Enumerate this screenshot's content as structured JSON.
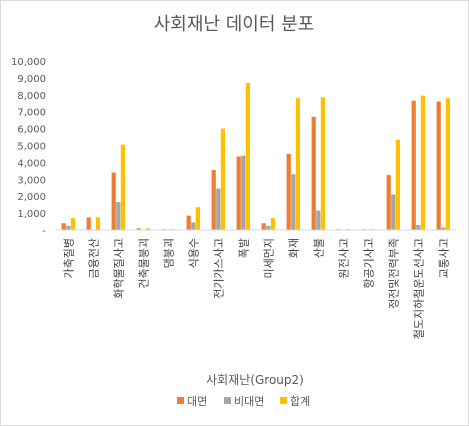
{
  "chart_data": {
    "type": "bar",
    "title": "사회재난 데이터 분포",
    "xlabel": "사회재난(Group2)",
    "ylabel": "",
    "ylim": [
      0,
      10000
    ],
    "yticks": [
      "-",
      "1,000",
      "2,000",
      "3,000",
      "4,000",
      "5,000",
      "6,000",
      "7,000",
      "8,000",
      "9,000",
      "10,000"
    ],
    "grid": false,
    "legend_position": "bottom",
    "categories": [
      "가축질병",
      "금융전산",
      "화학물질사고",
      "건축물붕괴",
      "댐붕괴",
      "식용수",
      "전기가스사고",
      "폭발",
      "미세먼지",
      "화재",
      "산불",
      "원전사고",
      "항공기사고",
      "정전및전력부족",
      "철도지하철운도선사고",
      "교통사고"
    ],
    "series": [
      {
        "name": "대면",
        "color": "#ed7d31",
        "values": [
          400,
          750,
          3400,
          100,
          50,
          850,
          3550,
          4350,
          400,
          4500,
          6700,
          50,
          50,
          3250,
          7650,
          7600
        ]
      },
      {
        "name": "비대면",
        "color": "#a5a5a5",
        "values": [
          250,
          0,
          1650,
          0,
          0,
          450,
          2450,
          4400,
          250,
          3300,
          1150,
          0,
          0,
          2100,
          300,
          150
        ]
      },
      {
        "name": "합계",
        "color": "#ffc000",
        "values": [
          700,
          750,
          5050,
          100,
          50,
          1350,
          6000,
          8700,
          700,
          7800,
          7850,
          50,
          50,
          5350,
          7950,
          7800
        ]
      }
    ]
  }
}
